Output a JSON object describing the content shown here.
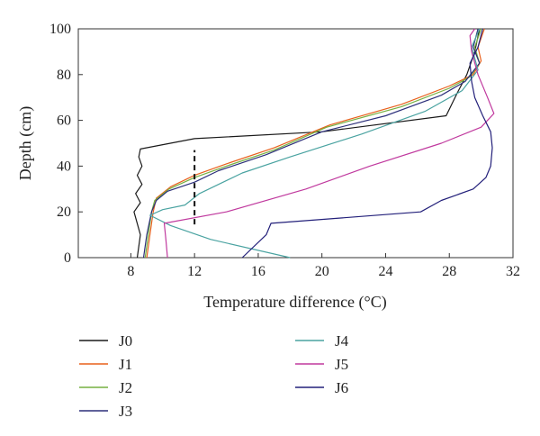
{
  "chart_data": {
    "type": "line",
    "xlabel": "Temperature difference (°C)",
    "ylabel": "Depth (cm)",
    "xlim": [
      4.7,
      32
    ],
    "ylim": [
      0,
      100
    ],
    "xticks": [
      8,
      12,
      16,
      20,
      24,
      28,
      32
    ],
    "yticks": [
      0,
      20,
      40,
      60,
      80,
      100
    ],
    "grid": false,
    "legend_placement": "below",
    "series": [
      {
        "name": "J0",
        "color": "#1a1a1a",
        "points": [
          [
            8.4,
            0
          ],
          [
            8.6,
            10
          ],
          [
            8.2,
            20
          ],
          [
            8.6,
            24
          ],
          [
            8.3,
            28
          ],
          [
            8.7,
            32
          ],
          [
            8.4,
            36
          ],
          [
            8.7,
            40
          ],
          [
            8.5,
            44
          ],
          [
            8.6,
            47.5
          ],
          [
            12,
            52
          ],
          [
            20,
            55
          ],
          [
            27.8,
            62
          ],
          [
            28.5,
            72
          ],
          [
            29.1,
            80
          ],
          [
            29.6,
            90
          ],
          [
            29.9,
            100
          ]
        ]
      },
      {
        "name": "J1",
        "color": "#e8601c",
        "points": [
          [
            9.0,
            0
          ],
          [
            9.2,
            10
          ],
          [
            9.4,
            20
          ],
          [
            9.6,
            26
          ],
          [
            10.5,
            31
          ],
          [
            12,
            36
          ],
          [
            14,
            41
          ],
          [
            17,
            48
          ],
          [
            20.5,
            58
          ],
          [
            25,
            67
          ],
          [
            28,
            75
          ],
          [
            29.5,
            80
          ],
          [
            30,
            86
          ],
          [
            29.8,
            92
          ],
          [
            30.2,
            100
          ]
        ]
      },
      {
        "name": "J2",
        "color": "#76b041",
        "points": [
          [
            8.9,
            0
          ],
          [
            9.1,
            10
          ],
          [
            9.3,
            20
          ],
          [
            9.5,
            25
          ],
          [
            10.4,
            30
          ],
          [
            12,
            35
          ],
          [
            14,
            40
          ],
          [
            17,
            47
          ],
          [
            20.3,
            57
          ],
          [
            25,
            66
          ],
          [
            28,
            74
          ],
          [
            29.3,
            79
          ],
          [
            29.9,
            85
          ],
          [
            29.6,
            92
          ],
          [
            30,
            100
          ]
        ]
      },
      {
        "name": "J3",
        "color": "#2c2f7a",
        "points": [
          [
            8.8,
            0
          ],
          [
            9.0,
            10
          ],
          [
            9.3,
            20
          ],
          [
            9.6,
            25
          ],
          [
            10.3,
            29
          ],
          [
            12,
            33
          ],
          [
            13.5,
            38
          ],
          [
            16.5,
            45
          ],
          [
            20,
            55
          ],
          [
            24,
            62
          ],
          [
            27.5,
            71
          ],
          [
            29,
            77
          ],
          [
            29.9,
            85
          ],
          [
            29.5,
            92
          ],
          [
            29.8,
            100
          ]
        ]
      },
      {
        "name": "J4",
        "color": "#4aa3a1",
        "points": [
          [
            18,
            0
          ],
          [
            13,
            8
          ],
          [
            10.5,
            14
          ],
          [
            9.2,
            18.5
          ],
          [
            10,
            21
          ],
          [
            11.4,
            23
          ],
          [
            12.3,
            28
          ],
          [
            15,
            37
          ],
          [
            18,
            44
          ],
          [
            22.5,
            54
          ],
          [
            26.5,
            64
          ],
          [
            28.8,
            73
          ],
          [
            29.8,
            82
          ],
          [
            29.4,
            92
          ],
          [
            29.9,
            100
          ]
        ]
      },
      {
        "name": "J5",
        "color": "#c0399e",
        "points": [
          [
            10.3,
            0
          ],
          [
            10.2,
            8
          ],
          [
            10.1,
            15
          ],
          [
            14,
            20
          ],
          [
            19,
            30
          ],
          [
            23,
            40
          ],
          [
            27.5,
            50
          ],
          [
            30,
            57
          ],
          [
            30.8,
            63
          ],
          [
            30.4,
            70
          ],
          [
            29.8,
            80
          ],
          [
            29.4,
            90
          ],
          [
            29.3,
            97
          ],
          [
            29.6,
            100
          ]
        ]
      },
      {
        "name": "J6",
        "color": "#23207a",
        "points": [
          [
            15,
            0
          ],
          [
            16.5,
            10
          ],
          [
            16.8,
            15
          ],
          [
            26.2,
            20
          ],
          [
            27.5,
            25
          ],
          [
            29.5,
            30
          ],
          [
            30.3,
            35
          ],
          [
            30.6,
            40
          ],
          [
            30.7,
            48
          ],
          [
            30.6,
            55
          ],
          [
            30.1,
            62
          ],
          [
            29.6,
            70
          ],
          [
            29.4,
            77
          ],
          [
            29.3,
            85
          ],
          [
            29.8,
            92
          ],
          [
            30.1,
            100
          ]
        ]
      }
    ],
    "annotation": {
      "type": "dashed-vertical-line",
      "x": 12,
      "y_range": [
        14.5,
        47
      ]
    }
  }
}
